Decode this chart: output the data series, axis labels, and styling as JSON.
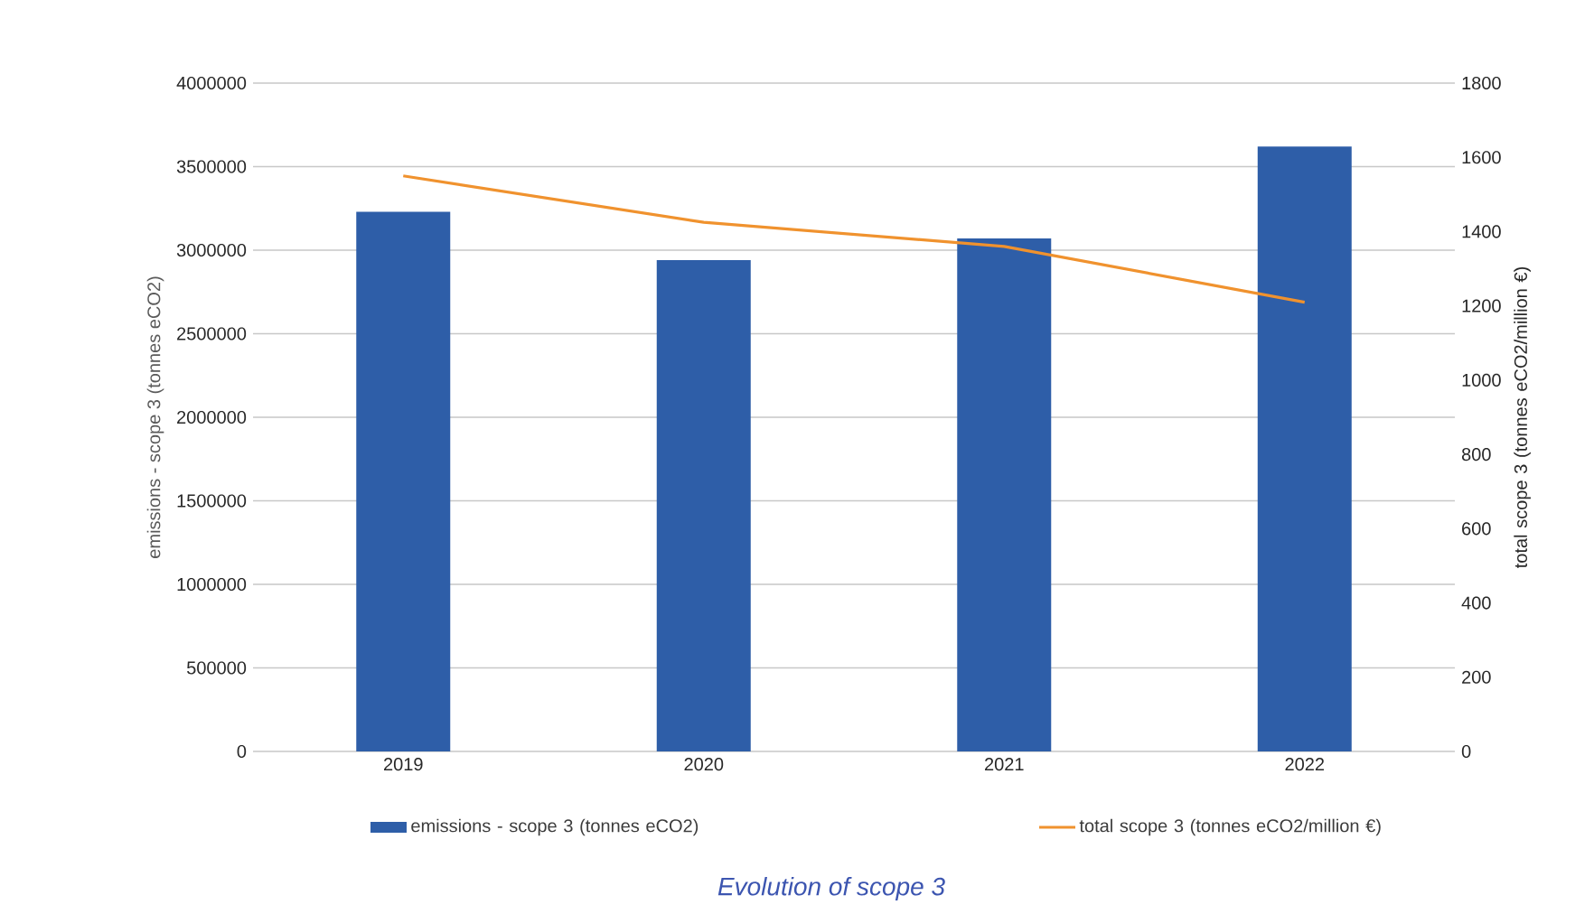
{
  "chart_data": {
    "type": "bar",
    "title": "Evolution of scope 3",
    "ylabel": "emissions - scope 3 (tonnes eCO2)",
    "y2label": "total scope 3 (tonnes eCO2/million €)",
    "categories": [
      "2019",
      "2020",
      "2021",
      "2022"
    ],
    "series": [
      {
        "name": "emissions - scope 3 (tonnes eCO2)",
        "color": "#2e5ea8",
        "values": [
          3230000,
          2940000,
          3070000,
          3620000
        ]
      },
      {
        "name": "total scope 3 (tonnes eCO2/million €)",
        "type": "line",
        "axis": "y2",
        "color": "#f0922e",
        "values": [
          1550,
          1425,
          1360,
          1210
        ]
      }
    ],
    "ylim": [
      0,
      4000000
    ],
    "yticks": [
      0,
      500000,
      1000000,
      1500000,
      2000000,
      2500000,
      3000000,
      3500000,
      4000000
    ],
    "y2lim": [
      0,
      1800
    ],
    "y2ticks": [
      0,
      200,
      400,
      600,
      800,
      1000,
      1200,
      1400,
      1600,
      1800
    ],
    "grid": "y",
    "legend": "bottom"
  }
}
